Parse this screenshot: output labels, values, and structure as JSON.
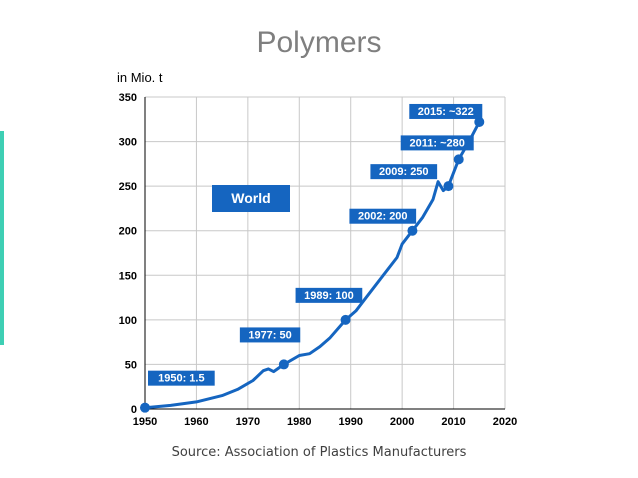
{
  "slide": {
    "title": "Polymers",
    "source": "Source: Association of Plastics Manufacturers"
  },
  "chart_data": {
    "type": "line",
    "ylabel": "in Mio. t",
    "xlabel": "",
    "xlim": [
      1950,
      2020
    ],
    "ylim": [
      0,
      350
    ],
    "x_ticks": [
      1950,
      1960,
      1970,
      1980,
      1990,
      2000,
      2010,
      2020
    ],
    "y_ticks": [
      0,
      50,
      100,
      150,
      200,
      250,
      300,
      350
    ],
    "grid": true,
    "region_label": "World",
    "line_color": "#1565c0",
    "series": [
      {
        "x": [
          1950,
          1955,
          1960,
          1965,
          1968,
          1971,
          1973,
          1974,
          1975,
          1977,
          1980,
          1982,
          1984,
          1986,
          1989,
          1991,
          1993,
          1995,
          1997,
          1999,
          2000,
          2002,
          2004,
          2006,
          2007,
          2008,
          2009,
          2011,
          2013,
          2015
        ],
        "y": [
          1.5,
          4,
          8,
          15,
          22,
          32,
          43,
          45,
          42,
          50,
          60,
          62,
          70,
          80,
          100,
          110,
          125,
          140,
          155,
          170,
          185,
          200,
          215,
          235,
          255,
          245,
          250,
          280,
          300,
          322
        ]
      }
    ],
    "annotations": [
      {
        "text": "1950: 1.5",
        "x": 1950,
        "y": 1.5
      },
      {
        "text": "1977: 50",
        "x": 1977,
        "y": 50
      },
      {
        "text": "1989: 100",
        "x": 1989,
        "y": 100
      },
      {
        "text": "2002: 200",
        "x": 2002,
        "y": 200
      },
      {
        "text": "2009: 250",
        "x": 2009,
        "y": 250
      },
      {
        "text": "2011: ~280",
        "x": 2011,
        "y": 280
      },
      {
        "text": "2015: ~322",
        "x": 2015,
        "y": 322
      }
    ]
  }
}
